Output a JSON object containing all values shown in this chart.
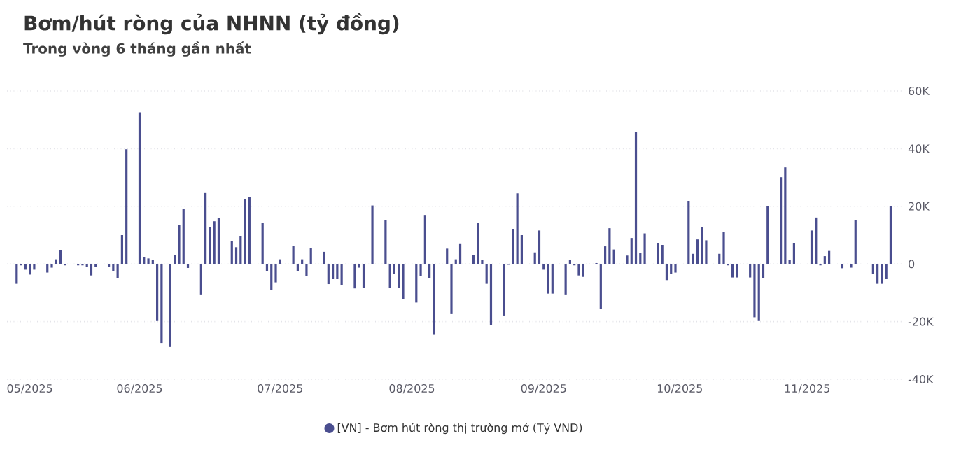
{
  "chart_data": {
    "type": "bar",
    "title": "Bơm/hút ròng của NHNN (tỷ đồng)",
    "subtitle": "Trong vòng 6 tháng gần nhất",
    "categories": [
      null,
      null,
      null,
      "05/2025",
      null,
      null,
      null,
      null,
      null,
      null,
      null,
      null,
      null,
      null,
      null,
      null,
      null,
      null,
      null,
      null,
      null,
      null,
      null,
      null,
      null,
      null,
      null,
      null,
      "06/2025",
      null,
      null,
      null,
      null,
      null,
      null,
      null,
      null,
      null,
      null,
      null,
      null,
      null,
      null,
      null,
      null,
      null,
      null,
      null,
      null,
      null,
      null,
      null,
      null,
      null,
      null,
      null,
      null,
      null,
      null,
      null,
      "07/2025",
      null,
      null,
      null,
      null,
      null,
      null,
      null,
      null,
      null,
      null,
      null,
      null,
      null,
      null,
      null,
      null,
      null,
      null,
      null,
      null,
      null,
      null,
      null,
      null,
      null,
      null,
      null,
      null,
      null,
      "08/2025",
      null,
      null,
      null,
      null,
      null,
      null,
      null,
      null,
      null,
      null,
      null,
      null,
      null,
      null,
      null,
      null,
      null,
      null,
      null,
      null,
      null,
      null,
      null,
      null,
      null,
      null,
      null,
      null,
      null,
      "09/2025",
      null,
      null,
      null,
      null,
      null,
      null,
      null,
      null,
      null,
      null,
      null,
      null,
      null,
      null,
      null,
      null,
      null,
      null,
      null,
      null,
      null,
      null,
      null,
      null,
      null,
      null,
      null,
      null,
      null,
      null,
      "10/2025",
      null,
      null,
      null,
      null,
      null,
      null,
      null,
      null,
      null,
      null,
      null,
      null,
      null,
      null,
      null,
      null,
      null,
      null,
      null,
      null,
      null,
      null,
      null,
      null,
      null,
      null,
      null,
      null,
      "11/2025",
      null,
      null,
      null,
      null,
      null,
      null,
      null,
      null,
      null,
      null,
      null,
      null,
      null,
      null,
      null,
      null,
      null,
      null,
      null
    ],
    "series": [
      {
        "name": "[VN] - Bơm hút ròng thị trường mở (Tỷ VND)",
        "color": "#4a4e8f",
        "values": [
          -6900,
          -500,
          -2000,
          -3700,
          -2000,
          null,
          null,
          -3000,
          -1300,
          1600,
          4700,
          -500,
          null,
          null,
          -500,
          -500,
          -1000,
          -4000,
          -1000,
          null,
          null,
          -1000,
          -2500,
          -5000,
          10000,
          39800,
          null,
          null,
          52600,
          2300,
          1900,
          1400,
          -19800,
          -27400,
          null,
          -28800,
          3200,
          13500,
          19200,
          -1400,
          null,
          null,
          -10600,
          24600,
          12700,
          14800,
          15900,
          null,
          null,
          7900,
          5800,
          9700,
          22400,
          23300,
          null,
          null,
          14200,
          -2400,
          -9000,
          -6400,
          1600,
          null,
          null,
          6300,
          -2600,
          1600,
          -4200,
          5600,
          null,
          null,
          4200,
          -7000,
          -5300,
          -5300,
          -7400,
          null,
          null,
          -8500,
          -1300,
          -8200,
          null,
          20300,
          null,
          null,
          15100,
          -8200,
          -3500,
          -8200,
          -12100,
          null,
          null,
          -13400,
          -4200,
          17000,
          -5000,
          -24600,
          null,
          null,
          5300,
          -17400,
          1600,
          6900,
          null,
          null,
          3200,
          14200,
          1300,
          -6900,
          -21300,
          null,
          null,
          -17900,
          -300,
          12100,
          24500,
          10000,
          null,
          null,
          4000,
          11600,
          -2000,
          -10300,
          -10300,
          null,
          null,
          -10600,
          1300,
          -500,
          -4000,
          -4500,
          null,
          null,
          300,
          -15500,
          6100,
          12400,
          5000,
          null,
          null,
          2900,
          9000,
          45700,
          3700,
          10600,
          null,
          null,
          7200,
          6600,
          -5600,
          -3500,
          -3000,
          null,
          null,
          21900,
          3500,
          8500,
          12700,
          8200,
          null,
          null,
          3500,
          11100,
          -500,
          -4700,
          -4700,
          null,
          null,
          -4700,
          -18500,
          -19800,
          -5000,
          20000,
          null,
          null,
          30100,
          33500,
          1300,
          7200,
          null,
          null,
          null,
          11600,
          16100,
          -500,
          2700,
          4500,
          null,
          null,
          -1500,
          null,
          -1300,
          15300,
          null,
          null,
          null,
          -3500,
          -6900,
          -6900,
          -5300,
          20000
        ]
      }
    ],
    "ylim": [
      -40000,
      60000
    ],
    "yticks": [
      {
        "value": -40000,
        "label": "-40K"
      },
      {
        "value": -20000,
        "label": "-20K"
      },
      0,
      {
        "value": 20000,
        "label": "20K"
      },
      {
        "value": 40000,
        "label": "40K"
      },
      {
        "value": 60000,
        "label": "60K"
      }
    ],
    "grid": "y",
    "legend": "bottom"
  }
}
